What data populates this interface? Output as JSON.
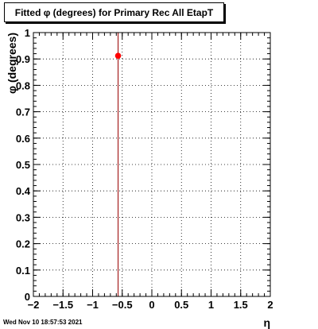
{
  "title": "Fitted φ (degrees) for Primary Rec All EtapT",
  "timestamp": "Wed Nov 10 18:57:53 2021",
  "chart_data": {
    "type": "scatter",
    "title": "Fitted φ (degrees) for Primary Rec All EtapT",
    "xlabel": "η",
    "ylabel": "φ (degrees)",
    "xlim": [
      -2,
      2
    ],
    "ylim": [
      0,
      1
    ],
    "grid": true,
    "x_ticks": [
      "−2",
      "−1.5",
      "−1",
      "−0.5",
      "0",
      "0.5",
      "1",
      "1.5",
      "2"
    ],
    "x_tick_values": [
      -2,
      -1.5,
      -1,
      -0.5,
      0,
      0.5,
      1,
      1.5,
      2
    ],
    "y_ticks": [
      "0",
      "0.1",
      "0.2",
      "0.3",
      "0.4",
      "0.5",
      "0.6",
      "0.7",
      "0.8",
      "0.9",
      "1"
    ],
    "y_tick_values": [
      0,
      0.1,
      0.2,
      0.3,
      0.4,
      0.5,
      0.6,
      0.7,
      0.8,
      0.9,
      1
    ],
    "points": [
      {
        "x": -0.57,
        "y": 0.912,
        "yerr_low": 0.912,
        "yerr_high": 0.088
      }
    ],
    "marker_color": "#ff0000",
    "error_color": "#990000"
  }
}
